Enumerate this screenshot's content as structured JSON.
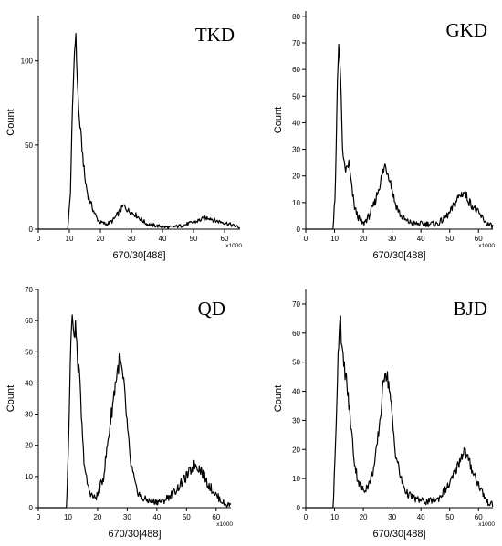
{
  "chart_data": [
    {
      "type": "line",
      "label": "TKD",
      "xlabel": "670/30[488]",
      "ylabel": "Count",
      "x_unit": "x1000",
      "xlim": [
        0,
        65
      ],
      "ylim": [
        0,
        127
      ],
      "xticks": [
        0,
        10,
        20,
        30,
        40,
        50,
        60
      ],
      "yticks": [
        0,
        50,
        100
      ],
      "grid": false,
      "x": [
        0,
        9.5,
        10.3,
        11.0,
        11.5,
        12.0,
        12.5,
        13.0,
        14.0,
        15.0,
        16.0,
        17.0,
        18.0,
        19.0,
        20.0,
        22.0,
        24.0,
        26.0,
        27.5,
        29.0,
        31.0,
        33.0,
        35.0,
        38.0,
        42.0,
        46.0,
        50.0,
        53.0,
        55.0,
        57.0,
        60.0,
        63.0,
        65.0
      ],
      "values": [
        0,
        0,
        20,
        70,
        100,
        118,
        92,
        70,
        50,
        30,
        20,
        15,
        10,
        6,
        4,
        3,
        5,
        10,
        14,
        11,
        9,
        6,
        3,
        2,
        1,
        2,
        4,
        6,
        7,
        5,
        4,
        2,
        1
      ]
    },
    {
      "type": "line",
      "label": "GKD",
      "xlabel": "670/30[488]",
      "ylabel": "Count",
      "x_unit": "x1000",
      "xlim": [
        0,
        65
      ],
      "ylim": [
        0,
        82
      ],
      "xticks": [
        0,
        10,
        20,
        30,
        40,
        50,
        60
      ],
      "yticks": [
        0,
        10,
        20,
        30,
        40,
        50,
        60,
        70,
        80
      ],
      "grid": false,
      "x": [
        0,
        9.5,
        10.3,
        11.0,
        11.5,
        12.0,
        12.5,
        13.0,
        14.0,
        15.0,
        16.0,
        17.0,
        18.0,
        19.0,
        20.0,
        22.0,
        24.0,
        26.0,
        27.5,
        29.0,
        31.0,
        33.0,
        35.0,
        38.0,
        42.0,
        46.0,
        50.0,
        53.0,
        55.0,
        57.0,
        60.0,
        63.0,
        65.0
      ],
      "values": [
        0,
        0,
        15,
        55,
        72,
        60,
        40,
        25,
        22,
        25,
        15,
        8,
        5,
        3,
        2,
        5,
        10,
        18,
        24,
        20,
        10,
        5,
        3,
        2,
        2,
        2,
        6,
        12,
        14,
        10,
        6,
        2,
        1
      ]
    },
    {
      "type": "line",
      "label": "QD",
      "xlabel": "670/30[488]",
      "ylabel": "Count",
      "x_unit": "x1000",
      "xlim": [
        0,
        65
      ],
      "ylim": [
        0,
        70
      ],
      "xticks": [
        0,
        10,
        20,
        30,
        40,
        50,
        60
      ],
      "yticks": [
        0,
        10,
        20,
        30,
        40,
        50,
        60,
        70
      ],
      "grid": false,
      "x": [
        0,
        9.5,
        10.3,
        11.0,
        11.5,
        12.0,
        12.5,
        13.0,
        14.0,
        15.0,
        16.0,
        17.0,
        18.0,
        19.0,
        20.0,
        22.0,
        24.0,
        26.0,
        27.5,
        29.0,
        31.0,
        33.0,
        35.0,
        38.0,
        42.0,
        46.0,
        50.0,
        53.0,
        55.0,
        57.0,
        60.0,
        63.0,
        65.0
      ],
      "values": [
        0,
        0,
        25,
        55,
        62,
        52,
        60,
        50,
        40,
        20,
        10,
        6,
        4,
        3,
        4,
        10,
        25,
        40,
        48,
        38,
        15,
        6,
        3,
        2,
        2,
        5,
        10,
        14,
        12,
        8,
        4,
        1,
        1
      ]
    },
    {
      "type": "line",
      "label": "BJD",
      "xlabel": "670/30[488]",
      "ylabel": "Count",
      "x_unit": "x1000",
      "xlim": [
        0,
        65
      ],
      "ylim": [
        0,
        75
      ],
      "xticks": [
        0,
        10,
        20,
        30,
        40,
        50,
        60
      ],
      "yticks": [
        0,
        10,
        20,
        30,
        40,
        50,
        60,
        70
      ],
      "grid": false,
      "x": [
        0,
        9.5,
        10.3,
        11.0,
        11.5,
        12.0,
        12.5,
        13.0,
        14.0,
        15.0,
        16.0,
        17.0,
        18.0,
        19.0,
        20.0,
        22.0,
        24.0,
        26.0,
        27.5,
        29.0,
        31.0,
        33.0,
        35.0,
        38.0,
        42.0,
        46.0,
        50.0,
        53.0,
        55.0,
        57.0,
        60.0,
        63.0,
        65.0
      ],
      "values": [
        0,
        0,
        20,
        45,
        60,
        68,
        55,
        50,
        45,
        35,
        25,
        15,
        10,
        7,
        6,
        8,
        15,
        32,
        48,
        42,
        20,
        10,
        5,
        3,
        2,
        3,
        8,
        15,
        20,
        15,
        8,
        2,
        1
      ]
    }
  ]
}
